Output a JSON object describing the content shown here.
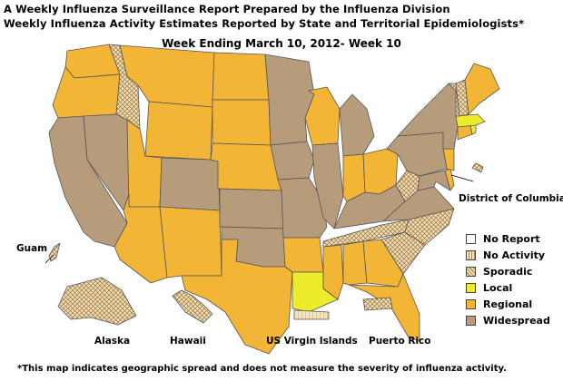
{
  "title_line1": "A Weekly Influenza Surveillance Report Prepared by the Influenza Division",
  "title_line2": "Weekly Influenza Activity Estimates Reported by State and Territorial Epidemiologists*",
  "week_label": "Week Ending March 10, 2012- Week 10",
  "footnote": "*This map indicates geographic spread and does not measure the severity of influenza activity.",
  "region_labels": {
    "guam": "Guam",
    "alaska": "Alaska",
    "hawaii": "Hawaii",
    "usvi": "US Virgin Islands",
    "puerto_rico": "Puerto Rico",
    "dc": "District of Columbia"
  },
  "colors": {
    "no_report": "#ffffff",
    "no_activity": "#f3e6c4",
    "sporadic": "#f2dfb2",
    "local": "#ecec2c",
    "regional": "#f2b535",
    "widespread": "#b79c7c",
    "border": "#555555"
  },
  "legend": [
    {
      "key": "no_report",
      "label": "No Report"
    },
    {
      "key": "no_activity",
      "label": "No Activity"
    },
    {
      "key": "sporadic",
      "label": "Sporadic"
    },
    {
      "key": "local",
      "label": "Local"
    },
    {
      "key": "regional",
      "label": "Regional"
    },
    {
      "key": "widespread",
      "label": "Widespread"
    }
  ],
  "activity": {
    "WA": "regional",
    "OR": "regional",
    "CA": "widespread",
    "NV": "widespread",
    "ID": "sporadic",
    "MT": "regional",
    "WY": "regional",
    "UT": "regional",
    "AZ": "regional",
    "CO": "widespread",
    "NM": "regional",
    "ND": "regional",
    "SD": "regional",
    "NE": "regional",
    "KS": "widespread",
    "OK": "widespread",
    "TX": "regional",
    "MN": "widespread",
    "IA": "widespread",
    "MO": "widespread",
    "AR": "regional",
    "LA": "local",
    "WI": "regional",
    "IL": "widespread",
    "MI": "widespread",
    "IN": "regional",
    "OH": "regional",
    "KY": "widespread",
    "TN": "sporadic",
    "MS": "regional",
    "AL": "regional",
    "GA": "regional",
    "FL": "regional",
    "SC": "sporadic",
    "NC": "sporadic",
    "VA": "widespread",
    "WV": "sporadic",
    "MD": "widespread",
    "DE": "regional",
    "NJ": "regional",
    "PA": "widespread",
    "NY": "widespread",
    "CT": "regional",
    "RI": "local",
    "MA": "local",
    "VT": "sporadic",
    "NH": "sporadic",
    "ME": "regional",
    "DC": "sporadic",
    "AK": "sporadic",
    "HI": "sporadic",
    "GU": "sporadic",
    "VI": "no_activity",
    "PR": "sporadic"
  }
}
